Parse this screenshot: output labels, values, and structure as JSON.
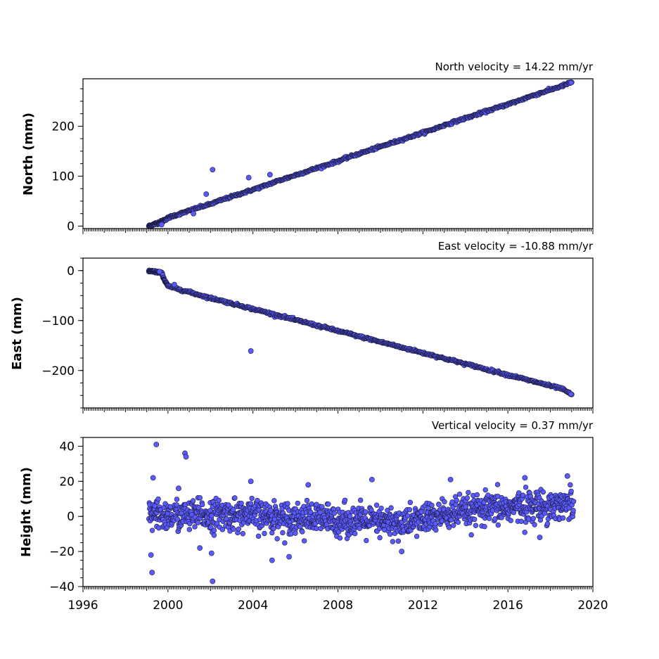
{
  "colors": {
    "point_fill": "#5a5aff",
    "point_edge": "#1a1a3a",
    "axis": "#000000"
  },
  "chart_data": [
    {
      "type": "scatter",
      "title": "North velocity = 14.22 mm/yr",
      "xlabel": "",
      "ylabel": "North (mm)",
      "xlim": [
        1996,
        2020
      ],
      "ylim": [
        -5,
        295
      ],
      "yticks": [
        0,
        100,
        200
      ],
      "ytick_labels": [
        "0",
        "100",
        "200"
      ],
      "show_xtick_labels": false,
      "grid": false,
      "trend": {
        "start": [
          1999.1,
          0
        ],
        "end": [
          2019.1,
          292
        ]
      },
      "x": [
        1999.1,
        1999.3,
        1999.5,
        1999.7,
        1999.9,
        2000.2,
        2000.6,
        2001.0,
        2001.5,
        2002.0,
        2002.5,
        2003.0,
        2003.5,
        2004.0,
        2004.5,
        2005.0,
        2005.5,
        2006.0,
        2006.5,
        2007.0,
        2007.5,
        2008.0,
        2008.5,
        2009.0,
        2009.5,
        2010.0,
        2010.5,
        2011.0,
        2011.5,
        2012.0,
        2012.5,
        2013.0,
        2013.5,
        2014.0,
        2014.5,
        2015.0,
        2015.5,
        2016.0,
        2016.5,
        2017.0,
        2017.5,
        2018.0,
        2018.5,
        2019.0
      ],
      "y": [
        0,
        3,
        6,
        9,
        14,
        20,
        25,
        31,
        38,
        44,
        52,
        59,
        66,
        73,
        80,
        88,
        95,
        102,
        109,
        116,
        123,
        130,
        138,
        145,
        152,
        159,
        166,
        173,
        180,
        187,
        194,
        202,
        209,
        216,
        223,
        230,
        237,
        244,
        251,
        259,
        266,
        273,
        280,
        288
      ],
      "outliers": {
        "x": [
          2001.8,
          2002.1,
          2003.8,
          2004.8,
          1999.7,
          2001.2
        ],
        "y": [
          64,
          113,
          97,
          103,
          3,
          25
        ]
      }
    },
    {
      "type": "scatter",
      "title": "East velocity = -10.88 mm/yr",
      "xlabel": "",
      "ylabel": "East (mm)",
      "xlim": [
        1996,
        2020
      ],
      "ylim": [
        -275,
        25
      ],
      "yticks": [
        0,
        -100,
        -200
      ],
      "ytick_labels": [
        "0",
        "−100",
        "−200"
      ],
      "show_xtick_labels": false,
      "grid": false,
      "trend": {
        "start": [
          1999.9,
          -31
        ],
        "end": [
          2019.1,
          -250
        ]
      },
      "x": [
        1999.1,
        1999.3,
        1999.5,
        1999.7,
        1999.85,
        2000.0,
        2000.5,
        2001.0,
        2001.5,
        2002.0,
        2002.5,
        2003.0,
        2003.5,
        2004.0,
        2004.5,
        2005.0,
        2005.5,
        2006.0,
        2006.5,
        2007.0,
        2007.5,
        2008.0,
        2008.5,
        2009.0,
        2009.5,
        2010.0,
        2010.5,
        2011.0,
        2011.5,
        2012.0,
        2012.5,
        2013.0,
        2013.5,
        2014.0,
        2014.5,
        2015.0,
        2015.5,
        2016.0,
        2016.5,
        2017.0,
        2017.5,
        2018.0,
        2018.5,
        2019.0
      ],
      "y": [
        -1,
        -2,
        -3,
        -5,
        -20,
        -31,
        -37,
        -43,
        -49,
        -55,
        -60,
        -66,
        -71,
        -77,
        -82,
        -88,
        -93,
        -99,
        -104,
        -110,
        -115,
        -121,
        -126,
        -132,
        -137,
        -143,
        -148,
        -154,
        -159,
        -165,
        -170,
        -176,
        -181,
        -187,
        -192,
        -198,
        -203,
        -209,
        -214,
        -220,
        -225,
        -231,
        -236,
        -248
      ],
      "outliers": {
        "x": [
          2003.9,
          1999.6,
          2000.3
        ],
        "y": [
          -161,
          -2,
          -28
        ]
      }
    },
    {
      "type": "scatter",
      "title": "Vertical velocity = 0.37 mm/yr",
      "xlabel": "",
      "ylabel": "Height (mm)",
      "xlim": [
        1996,
        2020
      ],
      "ylim": [
        -40,
        45
      ],
      "yticks": [
        -40,
        -20,
        0,
        20,
        40
      ],
      "ytick_labels": [
        "−40",
        "−20",
        "0",
        "20",
        "40"
      ],
      "xticks": [
        1996,
        2000,
        2004,
        2008,
        2012,
        2016,
        2020
      ],
      "xtick_labels": [
        "1996",
        "2000",
        "2004",
        "2008",
        "2012",
        "2016",
        "2020"
      ],
      "show_xtick_labels": true,
      "grid": false,
      "x_range": [
        1999.1,
        2019.1
      ],
      "band": {
        "x": [
          1999.1,
          2003.0,
          2008.0,
          2011.0,
          2013.0,
          2016.0,
          2019.0
        ],
        "center": [
          0,
          1,
          -2,
          -4,
          1,
          5,
          7
        ],
        "halfwidth": [
          8,
          8,
          8,
          8,
          8,
          8,
          8
        ]
      },
      "x": [
        1999.3,
        1999.45,
        2000.8,
        2000.85,
        2003.9,
        2006.6,
        2009.6,
        2013.3,
        2016.8,
        2018.8,
        1999.2,
        1999.25,
        2002.1,
        2002.05,
        2004.9,
        2005.7,
        2011.0,
        2017.5,
        2000.5,
        2001.5
      ],
      "y": [
        22,
        41,
        36,
        34,
        20,
        18,
        21,
        21,
        22,
        23,
        -22,
        -32,
        -37,
        -21,
        -25,
        -23,
        -20,
        -12,
        16,
        -18
      ]
    }
  ]
}
